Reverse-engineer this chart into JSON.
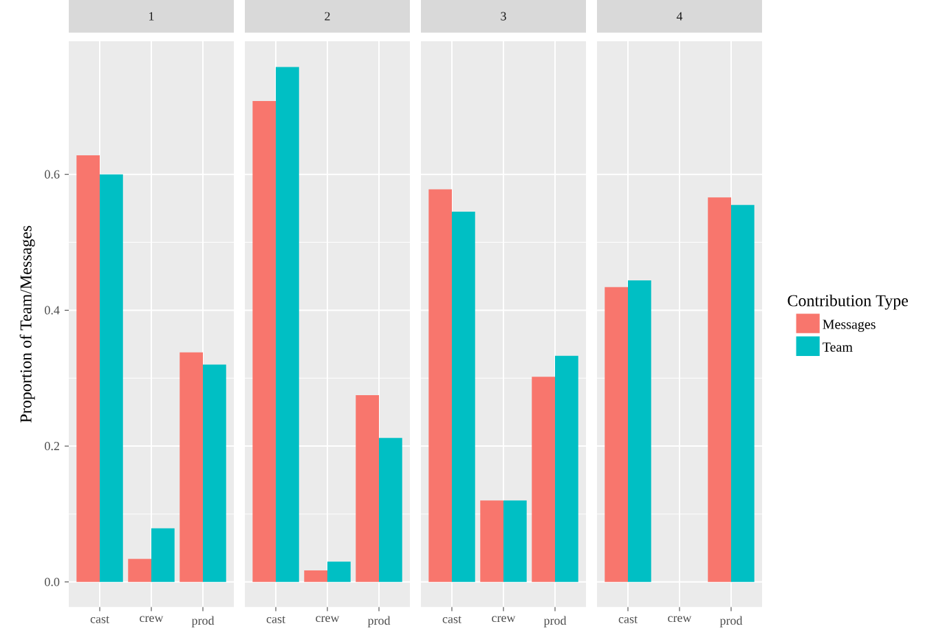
{
  "chart_data": [
    {
      "type": "bar",
      "title": "1",
      "ylabel": "Proportion of Team/Messages",
      "categories": [
        "cast",
        "crew",
        "prod"
      ],
      "series": [
        {
          "color": "#f8766d",
          "values": [
            0.628,
            0.034,
            0.338
          ]
        },
        {
          "color": "#00bfc4",
          "values": [
            0.6,
            0.079,
            0.32
          ]
        }
      ],
      "ylim": [
        -0.037,
        0.796
      ],
      "yticks": [
        {
          "value": 0,
          "label": "0.0"
        },
        0.2,
        0.4,
        0.6
      ],
      "grid": true
    },
    {
      "type": "bar",
      "title": "2",
      "categories": [
        "cast",
        "crew",
        "prod"
      ],
      "series": [
        {
          "color": "#f8766d",
          "values": [
            0.708,
            0.017,
            0.275
          ]
        },
        {
          "color": "#00bfc4",
          "values": [
            0.758,
            0.03,
            0.212
          ]
        }
      ],
      "ylim": [
        -0.037,
        0.796
      ],
      "tick_labels": "x",
      "grid": true
    },
    {
      "type": "bar",
      "title": "3",
      "categories": [
        "cast",
        "crew",
        "prod"
      ],
      "series": [
        {
          "color": "#f8766d",
          "values": [
            0.578,
            0.12,
            0.302
          ]
        },
        {
          "color": "#00bfc4",
          "values": [
            0.545,
            0.12,
            0.333
          ]
        }
      ],
      "ylim": [
        -0.037,
        0.796
      ],
      "tick_labels": "x",
      "grid": true
    },
    {
      "type": "bar",
      "title": "4",
      "categories": [
        "cast",
        "crew",
        "prod"
      ],
      "series": [
        {
          "name": "Messages",
          "color": "#f8766d",
          "values": [
            0.434,
            null,
            0.566
          ]
        },
        {
          "name": "Team",
          "color": "#00bfc4",
          "values": [
            0.444,
            null,
            0.555
          ]
        }
      ],
      "ylim": [
        -0.037,
        0.796
      ],
      "tick_labels": "x",
      "grid": true,
      "legend": "right",
      "legend_title": "Contribution Type"
    }
  ]
}
